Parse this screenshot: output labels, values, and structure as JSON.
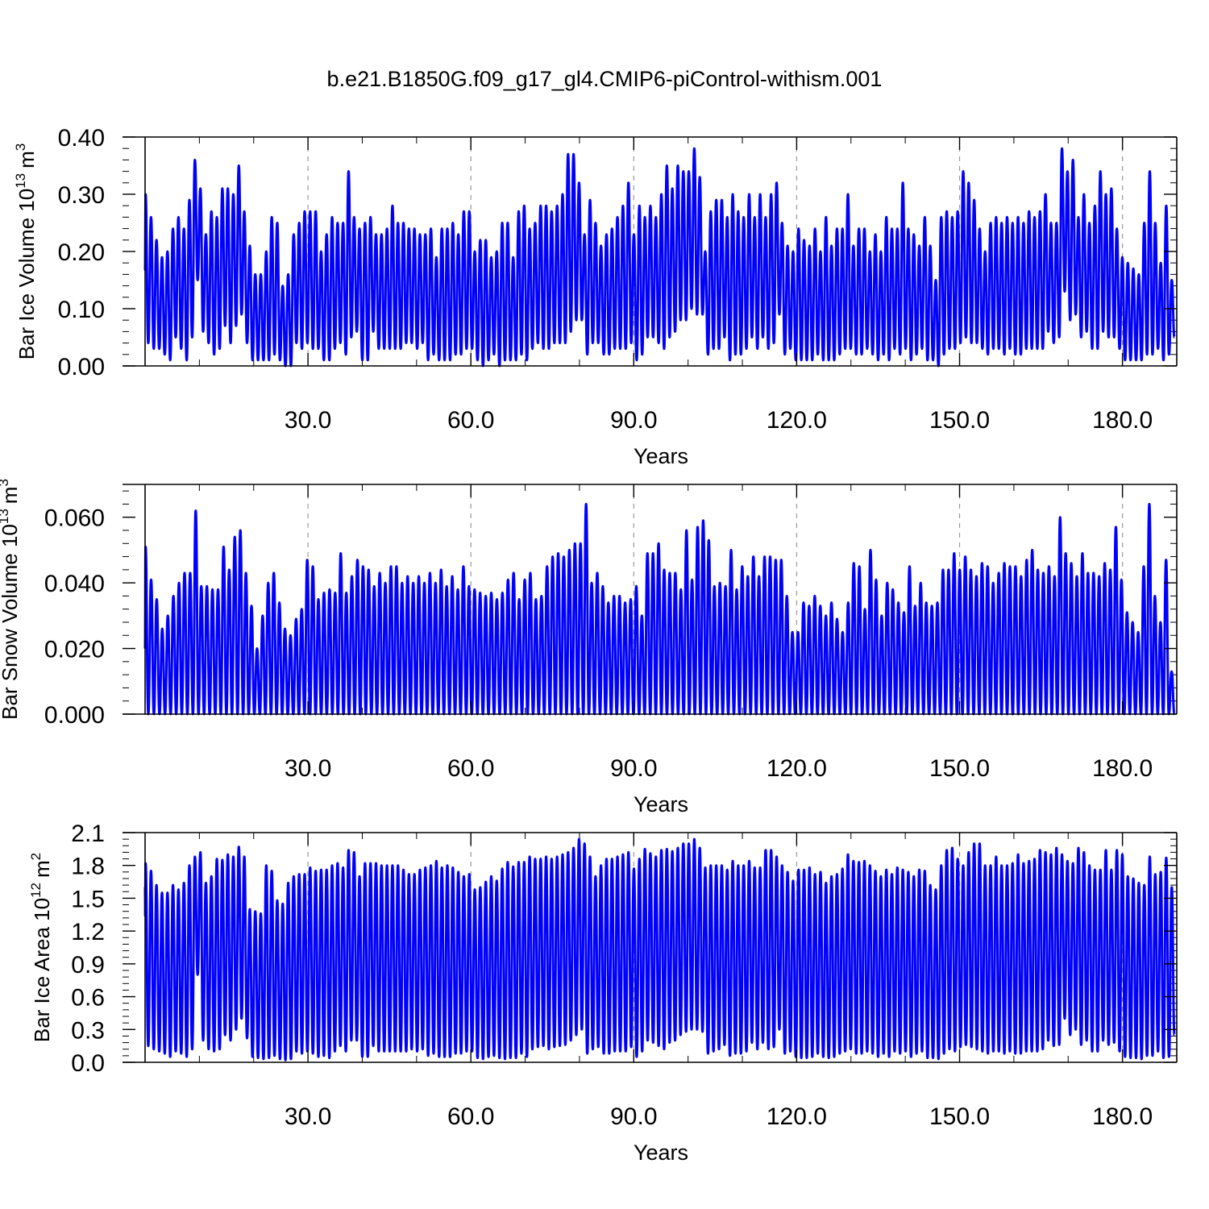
{
  "title": "b.e21.B1850G.f09_g17_gl4.CMIP6-piControl-withism.001",
  "colors": {
    "line": "#0000ff",
    "axis": "#000000",
    "grid": "#9a9a9a"
  },
  "chart_data": [
    {
      "type": "line",
      "ylabel": {
        "text": "Bar Ice Volume 10",
        "sup": "13",
        "unit": "m",
        "unit_sup": "3"
      },
      "xlabel": "Years",
      "xlim": [
        0,
        190
      ],
      "xticks": [
        "30.0",
        "60.0",
        "90.0",
        "120.0",
        "150.0",
        "180.0"
      ],
      "xtick_values": [
        30,
        60,
        90,
        120,
        150,
        180
      ],
      "ylim": [
        0,
        0.4
      ],
      "yticks": [
        "0.00",
        "0.10",
        "0.20",
        "0.30",
        "0.40"
      ],
      "ytick_values": [
        0,
        0.1,
        0.2,
        0.3,
        0.4
      ],
      "grid": "vertical-dashed",
      "series": [
        {
          "peaks": [
            0.3,
            0.26,
            0.22,
            0.19,
            0.2,
            0.24,
            0.26,
            0.24,
            0.29,
            0.36,
            0.31,
            0.23,
            0.27,
            0.26,
            0.31,
            0.31,
            0.3,
            0.35,
            0.27,
            0.21,
            0.16,
            0.16,
            0.2,
            0.26,
            0.25,
            0.14,
            0.16,
            0.23,
            0.25,
            0.27,
            0.27,
            0.27,
            0.2,
            0.23,
            0.26,
            0.25,
            0.25,
            0.34,
            0.26,
            0.24,
            0.25,
            0.26,
            0.23,
            0.23,
            0.24,
            0.28,
            0.25,
            0.25,
            0.24,
            0.24,
            0.23,
            0.23,
            0.24,
            0.19,
            0.24,
            0.24,
            0.25,
            0.23,
            0.27,
            0.27,
            0.2,
            0.22,
            0.22,
            0.19,
            0.2,
            0.25,
            0.25,
            0.19,
            0.27,
            0.28,
            0.24,
            0.25,
            0.28,
            0.28,
            0.27,
            0.28,
            0.3,
            0.37,
            0.37,
            0.32,
            0.23,
            0.29,
            0.25,
            0.21,
            0.23,
            0.24,
            0.26,
            0.28,
            0.32,
            0.23,
            0.28,
            0.26,
            0.28,
            0.26,
            0.3,
            0.35,
            0.31,
            0.35,
            0.34,
            0.34,
            0.38,
            0.33,
            0.2,
            0.27,
            0.29,
            0.29,
            0.26,
            0.3,
            0.27,
            0.26,
            0.3,
            0.26,
            0.3,
            0.26,
            0.3,
            0.32,
            0.25,
            0.21,
            0.2,
            0.24,
            0.22,
            0.21,
            0.24,
            0.2,
            0.26,
            0.21,
            0.24,
            0.24,
            0.3,
            0.21,
            0.24,
            0.24,
            0.2,
            0.23,
            0.2,
            0.26,
            0.24,
            0.24,
            0.32,
            0.24,
            0.23,
            0.21,
            0.26,
            0.21,
            0.15,
            0.26,
            0.27,
            0.26,
            0.27,
            0.34,
            0.32,
            0.29,
            0.24,
            0.2,
            0.25,
            0.26,
            0.25,
            0.26,
            0.25,
            0.26,
            0.25,
            0.27,
            0.26,
            0.27,
            0.3,
            0.25,
            0.25,
            0.38,
            0.34,
            0.36,
            0.26,
            0.3,
            0.25,
            0.28,
            0.34,
            0.3,
            0.31,
            0.24,
            0.19,
            0.18,
            0.17,
            0.16,
            0.25,
            0.34,
            0.25,
            0.18,
            0.28,
            0.15
          ],
          "troughs": [
            0.04,
            0.03,
            0.03,
            0.02,
            0.01,
            0.05,
            0.03,
            0.01,
            0.05,
            0.15,
            0.06,
            0.04,
            0.02,
            0.03,
            0.07,
            0.04,
            0.07,
            0.09,
            0.04,
            0.01,
            0.01,
            0.01,
            0.01,
            0.02,
            0.01,
            0.0,
            0.0,
            0.04,
            0.03,
            0.04,
            0.03,
            0.03,
            0.01,
            0.01,
            0.03,
            0.04,
            0.02,
            0.05,
            0.06,
            0.01,
            0.01,
            0.06,
            0.03,
            0.03,
            0.03,
            0.03,
            0.03,
            0.04,
            0.04,
            0.03,
            0.04,
            0.01,
            0.02,
            0.01,
            0.01,
            0.01,
            0.02,
            0.02,
            0.03,
            0.03,
            0.01,
            0.0,
            0.01,
            0.02,
            0.0,
            0.01,
            0.01,
            0.01,
            0.02,
            0.01,
            0.03,
            0.04,
            0.03,
            0.03,
            0.04,
            0.04,
            0.04,
            0.06,
            0.08,
            0.08,
            0.02,
            0.04,
            0.04,
            0.02,
            0.02,
            0.03,
            0.03,
            0.03,
            0.04,
            0.01,
            0.02,
            0.05,
            0.05,
            0.04,
            0.03,
            0.05,
            0.06,
            0.08,
            0.08,
            0.1,
            0.09,
            0.09,
            0.02,
            0.03,
            0.03,
            0.05,
            0.01,
            0.02,
            0.02,
            0.03,
            0.05,
            0.03,
            0.05,
            0.03,
            0.04,
            0.09,
            0.02,
            0.03,
            0.01,
            0.01,
            0.01,
            0.01,
            0.02,
            0.01,
            0.01,
            0.01,
            0.02,
            0.03,
            0.03,
            0.02,
            0.02,
            0.03,
            0.02,
            0.01,
            0.02,
            0.01,
            0.03,
            0.02,
            0.03,
            0.01,
            0.02,
            0.03,
            0.01,
            0.01,
            0.0,
            0.02,
            0.03,
            0.03,
            0.04,
            0.05,
            0.04,
            0.04,
            0.03,
            0.02,
            0.03,
            0.03,
            0.02,
            0.03,
            0.02,
            0.02,
            0.03,
            0.03,
            0.03,
            0.03,
            0.06,
            0.04,
            0.05,
            0.13,
            0.08,
            0.09,
            0.05,
            0.06,
            0.03,
            0.03,
            0.06,
            0.05,
            0.05,
            0.03,
            0.01,
            0.01,
            0.01,
            0.01,
            0.02,
            0.02,
            0.03,
            0.01,
            0.02,
            0.05
          ]
        }
      ]
    },
    {
      "type": "line",
      "ylabel": {
        "text": "Bar Snow Volume 10",
        "sup": "13",
        "unit": "m",
        "unit_sup": "3"
      },
      "xlabel": "Years",
      "xlim": [
        0,
        190
      ],
      "xticks": [
        "30.0",
        "60.0",
        "90.0",
        "120.0",
        "150.0",
        "180.0"
      ],
      "xtick_values": [
        30,
        60,
        90,
        120,
        150,
        180
      ],
      "ylim": [
        0,
        0.07
      ],
      "yticks": [
        "0.000",
        "0.020",
        "0.040",
        "0.060"
      ],
      "ytick_values": [
        0,
        0.02,
        0.04,
        0.06
      ],
      "grid": "vertical-dashed",
      "series": [
        {
          "peaks": [
            0.051,
            0.041,
            0.035,
            0.026,
            0.03,
            0.036,
            0.04,
            0.043,
            0.043,
            0.062,
            0.039,
            0.039,
            0.038,
            0.038,
            0.051,
            0.044,
            0.054,
            0.056,
            0.043,
            0.033,
            0.02,
            0.03,
            0.04,
            0.043,
            0.034,
            0.026,
            0.024,
            0.029,
            0.032,
            0.047,
            0.045,
            0.035,
            0.037,
            0.038,
            0.037,
            0.049,
            0.037,
            0.042,
            0.047,
            0.045,
            0.044,
            0.039,
            0.043,
            0.04,
            0.045,
            0.045,
            0.04,
            0.042,
            0.04,
            0.042,
            0.04,
            0.043,
            0.04,
            0.044,
            0.039,
            0.042,
            0.038,
            0.045,
            0.039,
            0.038,
            0.037,
            0.036,
            0.037,
            0.035,
            0.037,
            0.041,
            0.043,
            0.035,
            0.041,
            0.043,
            0.035,
            0.036,
            0.045,
            0.048,
            0.049,
            0.048,
            0.05,
            0.052,
            0.052,
            0.064,
            0.04,
            0.043,
            0.039,
            0.034,
            0.036,
            0.036,
            0.034,
            0.035,
            0.039,
            0.03,
            0.049,
            0.049,
            0.052,
            0.044,
            0.043,
            0.043,
            0.038,
            0.056,
            0.041,
            0.057,
            0.059,
            0.053,
            0.039,
            0.04,
            0.039,
            0.05,
            0.038,
            0.045,
            0.042,
            0.048,
            0.042,
            0.048,
            0.048,
            0.047,
            0.047,
            0.036,
            0.025,
            0.025,
            0.034,
            0.033,
            0.036,
            0.033,
            0.03,
            0.034,
            0.029,
            0.025,
            0.034,
            0.046,
            0.045,
            0.032,
            0.05,
            0.041,
            0.03,
            0.04,
            0.038,
            0.034,
            0.031,
            0.045,
            0.033,
            0.04,
            0.034,
            0.033,
            0.034,
            0.044,
            0.044,
            0.049,
            0.044,
            0.048,
            0.044,
            0.042,
            0.046,
            0.045,
            0.04,
            0.043,
            0.046,
            0.045,
            0.045,
            0.042,
            0.047,
            0.05,
            0.044,
            0.043,
            0.045,
            0.042,
            0.06,
            0.049,
            0.046,
            0.042,
            0.049,
            0.043,
            0.043,
            0.042,
            0.046,
            0.044,
            0.057,
            0.041,
            0.031,
            0.028,
            0.025,
            0.045,
            0.064,
            0.036,
            0.028,
            0.047,
            0.013
          ],
          "troughs": [
            0.0
          ]
        }
      ]
    },
    {
      "type": "line",
      "ylabel": {
        "text": "Bar Ice Area 10",
        "sup": "12",
        "unit": "m",
        "unit_sup": "2"
      },
      "xlabel": "Years",
      "xlim": [
        0,
        190
      ],
      "xticks": [
        "30.0",
        "60.0",
        "90.0",
        "120.0",
        "150.0",
        "180.0"
      ],
      "xtick_values": [
        30,
        60,
        90,
        120,
        150,
        180
      ],
      "ylim": [
        0,
        2.1
      ],
      "yticks": [
        "0.0",
        "0.3",
        "0.6",
        "0.9",
        "1.2",
        "1.5",
        "1.8",
        "2.1"
      ],
      "ytick_values": [
        0,
        0.3,
        0.6,
        0.9,
        1.2,
        1.5,
        1.8,
        2.1
      ],
      "grid": "vertical-dashed",
      "series": [
        {
          "peaks": [
            1.82,
            1.75,
            1.62,
            1.55,
            1.55,
            1.62,
            1.58,
            1.64,
            1.8,
            1.88,
            1.92,
            1.64,
            1.7,
            1.86,
            1.85,
            1.9,
            1.88,
            1.97,
            1.88,
            1.4,
            1.38,
            1.36,
            1.8,
            1.75,
            1.48,
            1.45,
            1.64,
            1.7,
            1.72,
            1.72,
            1.78,
            1.75,
            1.76,
            1.76,
            1.8,
            1.82,
            1.78,
            1.94,
            1.92,
            1.7,
            1.82,
            1.82,
            1.82,
            1.8,
            1.8,
            1.8,
            1.8,
            1.76,
            1.72,
            1.72,
            1.76,
            1.78,
            1.8,
            1.84,
            1.78,
            1.8,
            1.78,
            1.74,
            1.7,
            1.72,
            1.58,
            1.6,
            1.65,
            1.7,
            1.66,
            1.77,
            1.83,
            1.79,
            1.83,
            1.83,
            1.88,
            1.86,
            1.86,
            1.88,
            1.86,
            1.88,
            1.9,
            1.92,
            1.96,
            2.04,
            2.0,
            1.88,
            1.7,
            1.8,
            1.86,
            1.86,
            1.88,
            1.9,
            1.92,
            1.77,
            1.86,
            1.95,
            1.91,
            1.88,
            1.94,
            1.95,
            1.93,
            1.96,
            2.0,
            2.0,
            2.04,
            1.96,
            1.78,
            1.8,
            1.8,
            1.8,
            1.76,
            1.84,
            1.8,
            1.8,
            1.84,
            1.78,
            1.78,
            1.94,
            1.94,
            1.88,
            1.8,
            1.74,
            1.66,
            1.76,
            1.76,
            1.78,
            1.72,
            1.74,
            1.64,
            1.7,
            1.72,
            1.77,
            1.9,
            1.84,
            1.83,
            1.84,
            1.8,
            1.75,
            1.7,
            1.76,
            1.72,
            1.78,
            1.76,
            1.74,
            1.7,
            1.76,
            1.75,
            1.62,
            1.58,
            1.8,
            1.94,
            1.96,
            1.86,
            1.8,
            1.92,
            2.0,
            2.0,
            1.8,
            1.8,
            1.88,
            1.8,
            1.8,
            1.82,
            1.9,
            1.82,
            1.84,
            1.86,
            1.94,
            1.92,
            1.9,
            1.96,
            1.9,
            1.84,
            1.82,
            1.96,
            1.92,
            1.8,
            1.76,
            1.76,
            1.94,
            1.76,
            1.94,
            1.9,
            1.7,
            1.68,
            1.64,
            1.62,
            1.88,
            1.72,
            1.74,
            1.87,
            1.6
          ],
          "troughs": [
            0.15,
            0.12,
            0.1,
            0.08,
            0.05,
            0.1,
            0.08,
            0.05,
            0.12,
            0.8,
            0.2,
            0.12,
            0.1,
            0.12,
            0.25,
            0.2,
            0.3,
            0.4,
            0.22,
            0.05,
            0.04,
            0.03,
            0.04,
            0.06,
            0.03,
            0.02,
            0.03,
            0.1,
            0.08,
            0.1,
            0.08,
            0.05,
            0.06,
            0.04,
            0.1,
            0.15,
            0.1,
            0.2,
            0.2,
            0.05,
            0.05,
            0.15,
            0.1,
            0.1,
            0.1,
            0.1,
            0.1,
            0.1,
            0.12,
            0.1,
            0.12,
            0.06,
            0.08,
            0.05,
            0.05,
            0.05,
            0.08,
            0.08,
            0.1,
            0.1,
            0.04,
            0.03,
            0.05,
            0.06,
            0.04,
            0.03,
            0.04,
            0.04,
            0.08,
            0.05,
            0.12,
            0.14,
            0.15,
            0.12,
            0.14,
            0.15,
            0.16,
            0.2,
            0.25,
            0.3,
            0.08,
            0.12,
            0.14,
            0.08,
            0.08,
            0.1,
            0.1,
            0.1,
            0.14,
            0.05,
            0.1,
            0.2,
            0.18,
            0.15,
            0.12,
            0.18,
            0.2,
            0.25,
            0.28,
            0.3,
            0.3,
            0.28,
            0.08,
            0.1,
            0.12,
            0.16,
            0.06,
            0.08,
            0.08,
            0.1,
            0.18,
            0.12,
            0.18,
            0.12,
            0.14,
            0.3,
            0.08,
            0.1,
            0.05,
            0.04,
            0.04,
            0.05,
            0.08,
            0.05,
            0.04,
            0.05,
            0.08,
            0.1,
            0.12,
            0.08,
            0.08,
            0.1,
            0.08,
            0.05,
            0.08,
            0.05,
            0.1,
            0.08,
            0.1,
            0.05,
            0.08,
            0.1,
            0.04,
            0.04,
            0.03,
            0.08,
            0.12,
            0.1,
            0.14,
            0.16,
            0.14,
            0.12,
            0.1,
            0.08,
            0.1,
            0.1,
            0.08,
            0.1,
            0.08,
            0.08,
            0.1,
            0.1,
            0.1,
            0.12,
            0.2,
            0.15,
            0.16,
            0.4,
            0.25,
            0.3,
            0.16,
            0.2,
            0.1,
            0.1,
            0.2,
            0.16,
            0.18,
            0.1,
            0.05,
            0.04,
            0.04,
            0.03,
            0.06,
            0.06,
            0.1,
            0.04,
            0.05,
            0.25
          ]
        }
      ]
    }
  ]
}
